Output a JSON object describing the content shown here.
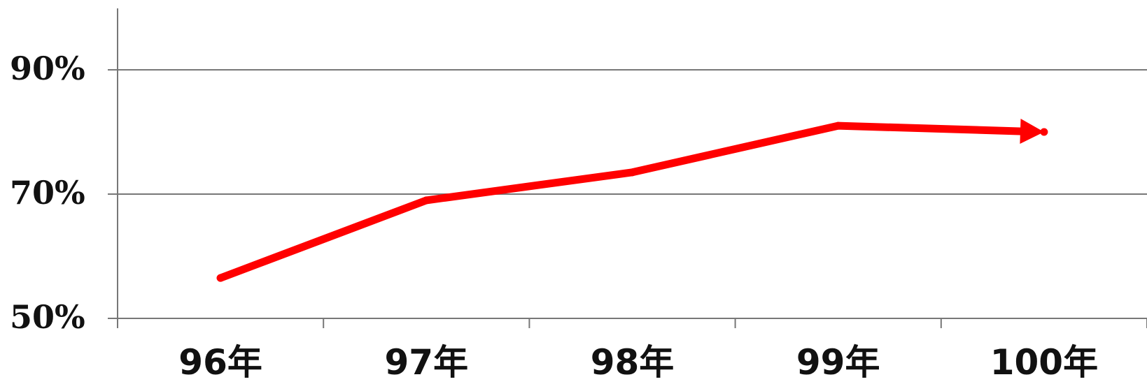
{
  "chart_data": {
    "type": "line",
    "categories": [
      "96年",
      "97年",
      "98年",
      "99年",
      "100年"
    ],
    "series": [
      {
        "values": [
          56.5,
          69,
          73.5,
          81,
          80
        ]
      }
    ],
    "y_ticks": [
      "50%",
      "70%",
      "90%"
    ],
    "y_tick_values": [
      50,
      70,
      90
    ],
    "ylim": [
      50,
      100
    ],
    "grid": true,
    "line_color": "#ff0000",
    "axis_color": "#777777",
    "end_marker": "arrow"
  }
}
